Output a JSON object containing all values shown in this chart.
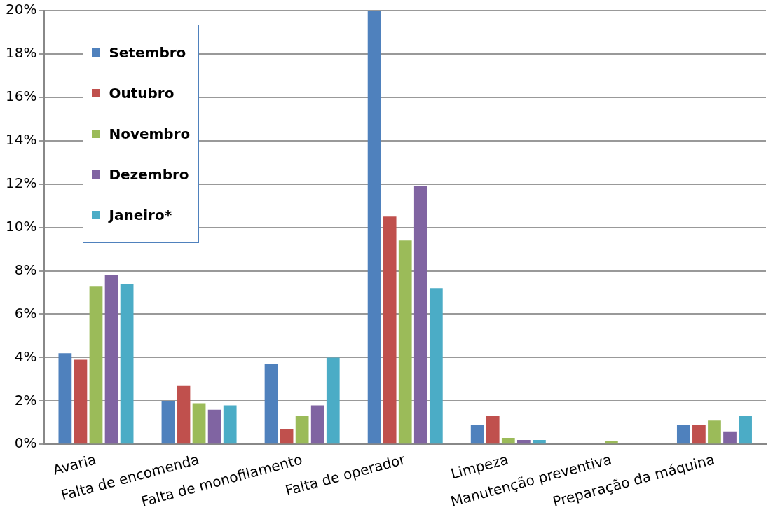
{
  "chart_data": {
    "type": "bar",
    "categories": [
      "Avaria",
      "Falta de encomenda",
      "Falta de monofilamento",
      "Falta de operador",
      "Limpeza",
      "Manutenção preventiva",
      "Preparação da máquina"
    ],
    "series": [
      {
        "name": "Setembro",
        "color": "#4f81bd",
        "values": [
          4.2,
          2.0,
          3.7,
          20.0,
          0.9,
          0.0,
          0.9
        ]
      },
      {
        "name": "Outubro",
        "color": "#c0504d",
        "values": [
          3.9,
          2.7,
          0.7,
          10.5,
          1.3,
          0.0,
          0.9
        ]
      },
      {
        "name": "Novembro",
        "color": "#9bbb59",
        "values": [
          7.3,
          1.9,
          1.3,
          9.4,
          0.3,
          0.15,
          1.1
        ]
      },
      {
        "name": "Dezembro",
        "color": "#8064a2",
        "values": [
          7.8,
          1.6,
          1.8,
          11.9,
          0.2,
          0.0,
          0.6
        ]
      },
      {
        "name": "Janeiro*",
        "color": "#4bacc6",
        "values": [
          7.4,
          1.8,
          4.0,
          7.2,
          0.2,
          0.0,
          1.3
        ]
      }
    ],
    "ylim": [
      0,
      20
    ],
    "yticks": [
      {
        "value": 0,
        "label": "0%"
      },
      {
        "value": 2,
        "label": "2%"
      },
      {
        "value": 4,
        "label": "4%"
      },
      {
        "value": 6,
        "label": "6%"
      },
      {
        "value": 8,
        "label": "8%"
      },
      {
        "value": 10,
        "label": "10%"
      },
      {
        "value": 12,
        "label": "12%"
      },
      {
        "value": 14,
        "label": "14%"
      },
      {
        "value": 16,
        "label": "16%"
      },
      {
        "value": 18,
        "label": "18%"
      },
      {
        "value": 20,
        "label": "20%"
      }
    ],
    "grid": "y",
    "legend": "top left"
  }
}
